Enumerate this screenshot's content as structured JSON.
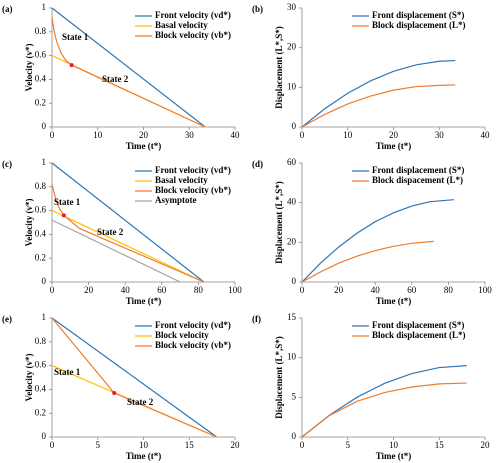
{
  "chart_data": [
    {
      "type": "line",
      "label": "(a)",
      "xlabel": "Time (t*)",
      "ylabel": "Velocity (v*)",
      "xlim": [
        0,
        40
      ],
      "xticks": [
        0,
        10,
        20,
        30,
        40
      ],
      "ylim": [
        0,
        1
      ],
      "yticks": [
        0,
        0.2,
        0.4,
        0.6,
        0.8,
        1
      ],
      "legend": "upper right",
      "series": [
        {
          "name": "Front velocity (vd*)",
          "color": "#2e75b6",
          "x": [
            0,
            33.5
          ],
          "values": [
            1,
            0
          ]
        },
        {
          "name": "Basal velocity",
          "color": "#ffc000",
          "x": [
            0,
            33.5
          ],
          "values": [
            0.6,
            0
          ]
        },
        {
          "name": "Block velocity (vb*)",
          "color": "#ed7d31",
          "x": [
            0,
            0.5,
            1,
            2,
            3,
            4.3,
            33.5
          ],
          "values": [
            0.92,
            0.8,
            0.72,
            0.62,
            0.56,
            0.52,
            0
          ]
        }
      ],
      "points": [
        {
          "x": 4.3,
          "y": 0.52,
          "color": "#e02020"
        }
      ],
      "annotations": [
        "State 1",
        "State 2"
      ]
    },
    {
      "type": "line",
      "label": "(b)",
      "xlabel": "Time (t*)",
      "ylabel": "Displacement (L*,S*)",
      "xlim": [
        0,
        40
      ],
      "xticks": [
        0,
        10,
        20,
        30,
        40
      ],
      "ylim": [
        0,
        30
      ],
      "yticks": [
        0,
        10,
        20,
        30
      ],
      "legend": "upper right",
      "series": [
        {
          "name": "Front displacement (S*)",
          "color": "#2e75b6",
          "x": [
            0,
            5,
            10,
            15,
            20,
            25,
            30,
            33.5
          ],
          "values": [
            0,
            4.63,
            8.51,
            11.64,
            14.03,
            15.67,
            16.57,
            16.75
          ]
        },
        {
          "name": "Block displacement (L*)",
          "color": "#ed7d31",
          "x": [
            0,
            5,
            10,
            15,
            20,
            25,
            30,
            33.5
          ],
          "values": [
            0,
            3.2,
            5.8,
            7.8,
            9.3,
            10.2,
            10.5,
            10.6
          ]
        }
      ],
      "points": [],
      "annotations": []
    },
    {
      "type": "line",
      "label": "(c)",
      "xlabel": "Time (t*)",
      "ylabel": "Velocity (v*)",
      "xlim": [
        0,
        100
      ],
      "xticks": [
        0,
        20,
        40,
        60,
        80,
        100
      ],
      "ylim": [
        0,
        1
      ],
      "yticks": [
        0,
        0.2,
        0.4,
        0.6,
        0.8,
        1
      ],
      "legend": "upper right",
      "series": [
        {
          "name": "Front velocity (vd*)",
          "color": "#2e75b6",
          "x": [
            0,
            83
          ],
          "values": [
            1,
            0
          ]
        },
        {
          "name": "Basal velocity",
          "color": "#ffc000",
          "x": [
            0,
            83
          ],
          "values": [
            0.6,
            0
          ]
        },
        {
          "name": "Block velocity (vb*)",
          "color": "#ed7d31",
          "x": [
            0,
            2,
            4,
            6.5,
            15,
            83
          ],
          "values": [
            0.82,
            0.7,
            0.62,
            0.56,
            0.45,
            0
          ]
        },
        {
          "name": "Asymptote",
          "color": "#a5a5a5",
          "x": [
            0,
            70
          ],
          "values": [
            0.52,
            0
          ]
        }
      ],
      "points": [
        {
          "x": 6.5,
          "y": 0.56,
          "color": "#e02020"
        }
      ],
      "annotations": [
        "State 1",
        "State 2"
      ]
    },
    {
      "type": "line",
      "label": "(d)",
      "xlabel": "Time (t*)",
      "ylabel": "Displacement (L*,S*)",
      "xlim": [
        0,
        100
      ],
      "xticks": [
        0,
        20,
        40,
        60,
        80,
        100
      ],
      "ylim": [
        0,
        60
      ],
      "yticks": [
        0,
        20,
        40,
        60
      ],
      "legend": "upper right",
      "series": [
        {
          "name": "Front displacement (S*)",
          "color": "#2e75b6",
          "x": [
            0,
            10,
            20,
            30,
            40,
            50,
            60,
            70,
            83
          ],
          "values": [
            0,
            9.4,
            17.6,
            24.6,
            30.4,
            34.9,
            38.3,
            40.5,
            41.5
          ]
        },
        {
          "name": "Block dispacement  (L*)",
          "color": "#ed7d31",
          "x": [
            0,
            10,
            20,
            30,
            40,
            50,
            60,
            72
          ],
          "values": [
            0,
            5,
            9.5,
            13,
            15.8,
            18,
            19.5,
            20.5
          ]
        }
      ],
      "points": [],
      "annotations": []
    },
    {
      "type": "line",
      "label": "(e)",
      "xlabel": "Time (t*)",
      "ylabel": "Velocity (v*)",
      "xlim": [
        0,
        20
      ],
      "xticks": [
        0,
        5,
        10,
        15,
        20
      ],
      "ylim": [
        0,
        1
      ],
      "yticks": [
        0,
        0.2,
        0.4,
        0.6,
        0.8,
        1
      ],
      "legend": "upper right",
      "series": [
        {
          "name": "Front velocity (vd*)",
          "color": "#2e75b6",
          "x": [
            0,
            18
          ],
          "values": [
            1,
            0
          ]
        },
        {
          "name": "Block velocity",
          "color": "#ffc000",
          "x": [
            0,
            18
          ],
          "values": [
            0.6,
            0
          ]
        },
        {
          "name": "Block velocity (vb*)",
          "color": "#ed7d31",
          "x": [
            0,
            6.8,
            18
          ],
          "values": [
            1,
            0.37,
            0
          ]
        }
      ],
      "points": [
        {
          "x": 6.8,
          "y": 0.37,
          "color": "#e02020"
        }
      ],
      "annotations": [
        "State 1",
        "State 2"
      ]
    },
    {
      "type": "line",
      "label": "(f)",
      "xlabel": "Time (t*)",
      "ylabel": "Displacement (L*,S*)",
      "xlim": [
        0,
        20
      ],
      "xticks": [
        0,
        5,
        10,
        15,
        20
      ],
      "ylim": [
        0,
        15
      ],
      "yticks": [
        0,
        5,
        10,
        15
      ],
      "legend": "upper right",
      "series": [
        {
          "name": "Front displacement (S*)",
          "color": "#2e75b6",
          "x": [
            0,
            3,
            6,
            9,
            12,
            15,
            18
          ],
          "values": [
            0,
            2.75,
            5,
            6.75,
            8,
            8.75,
            9
          ]
        },
        {
          "name": "Block displacement (L*)",
          "color": "#ed7d31",
          "x": [
            0,
            3,
            6,
            9,
            12,
            15,
            18
          ],
          "values": [
            0,
            2.7,
            4.5,
            5.6,
            6.3,
            6.7,
            6.8
          ]
        }
      ],
      "points": [],
      "annotations": []
    }
  ]
}
